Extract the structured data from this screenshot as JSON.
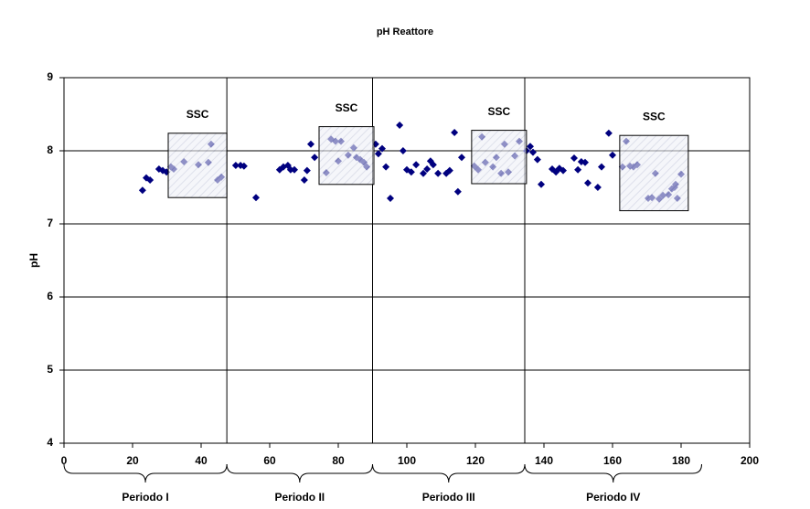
{
  "chart_data": {
    "type": "scatter",
    "title": "pH Reattore",
    "y_label": "pH",
    "x": [
      22.9,
      24,
      25.1,
      27.7,
      28.8,
      29.9,
      31.2,
      32,
      35,
      39.2,
      42.1,
      42.9,
      44.8,
      45.9,
      50.1,
      51.5,
      52.5,
      56,
      62.9,
      64,
      65.3,
      66.1,
      67.2,
      70.1,
      70.9,
      72,
      73.1,
      76.5,
      77.9,
      79.2,
      80,
      80.8,
      82.9,
      84.5,
      85.3,
      86.4,
      87.5,
      88.3,
      90.9,
      91.7,
      92.8,
      93.9,
      95.2,
      97.9,
      98.9,
      100,
      101.3,
      102.7,
      104.8,
      105.9,
      106.9,
      107.7,
      109.1,
      111.5,
      112.5,
      113.9,
      114.9,
      116,
      119.7,
      120.8,
      121.9,
      122.9,
      125.1,
      126.1,
      127.5,
      128.5,
      129.6,
      131.5,
      132.8,
      134.9,
      136,
      136.8,
      138.1,
      139.2,
      142.4,
      143.5,
      144.5,
      145.6,
      148.8,
      149.9,
      150.9,
      152,
      152.8,
      155.7,
      156.8,
      158.9,
      160,
      162.9,
      164,
      165.1,
      166.1,
      167.2,
      170.4,
      171.5,
      172.5,
      173.6,
      174.7,
      176.3,
      177.3,
      178.1,
      178.4,
      178.9,
      180
    ],
    "values": [
      7.46,
      7.63,
      7.6,
      7.75,
      7.73,
      7.71,
      7.78,
      7.75,
      7.85,
      7.81,
      7.84,
      8.09,
      7.6,
      7.64,
      7.8,
      7.8,
      7.79,
      7.36,
      7.74,
      7.78,
      7.8,
      7.74,
      7.74,
      7.6,
      7.73,
      8.09,
      7.91,
      7.7,
      8.16,
      8.13,
      7.86,
      8.13,
      7.94,
      8.04,
      7.91,
      7.88,
      7.84,
      7.78,
      8.09,
      7.96,
      8.03,
      7.78,
      7.35,
      8.35,
      8.0,
      7.74,
      7.71,
      7.81,
      7.69,
      7.75,
      7.86,
      7.81,
      7.69,
      7.69,
      7.73,
      8.25,
      7.44,
      7.91,
      7.79,
      7.74,
      8.19,
      7.84,
      7.78,
      7.91,
      7.69,
      8.09,
      7.71,
      7.93,
      8.13,
      8.0,
      8.06,
      7.98,
      7.88,
      7.54,
      7.75,
      7.71,
      7.76,
      7.73,
      7.9,
      7.74,
      7.85,
      7.84,
      7.56,
      7.5,
      7.78,
      8.24,
      7.94,
      7.78,
      8.13,
      7.79,
      7.78,
      7.81,
      7.35,
      7.36,
      7.69,
      7.34,
      7.39,
      7.4,
      7.48,
      7.5,
      7.54,
      7.35,
      7.68
    ],
    "color": "#00007f",
    "xlim": [
      0,
      200
    ],
    "xticks": [
      0,
      20,
      40,
      60,
      80,
      100,
      120,
      140,
      160,
      180,
      200
    ],
    "ylim": [
      4,
      9
    ],
    "yticks": [
      4,
      5,
      6,
      7,
      8,
      9
    ],
    "grid": true,
    "dividers": [
      47.5,
      90,
      134.4
    ],
    "annotations": [
      {
        "text": "SSC",
        "x": [
          30.4,
          47.5
        ],
        "y": [
          7.36,
          8.24
        ]
      },
      {
        "text": "SSC",
        "x": [
          74.4,
          90.4
        ],
        "y": [
          7.54,
          8.33
        ]
      },
      {
        "text": "SSC",
        "x": [
          118.9,
          134.9
        ],
        "y": [
          7.55,
          8.28
        ]
      },
      {
        "text": "SSC",
        "x": [
          162.1,
          182.1
        ],
        "y": [
          7.18,
          8.21
        ]
      }
    ],
    "periods": [
      {
        "label": "Periodo I",
        "range": [
          0,
          47.5
        ]
      },
      {
        "label": "Periodo  II",
        "range": [
          47.5,
          90
        ]
      },
      {
        "label": "Periodo III",
        "range": [
          90,
          134.4
        ]
      },
      {
        "label": "Periodo IV",
        "range": [
          134.4,
          186
        ]
      }
    ]
  }
}
